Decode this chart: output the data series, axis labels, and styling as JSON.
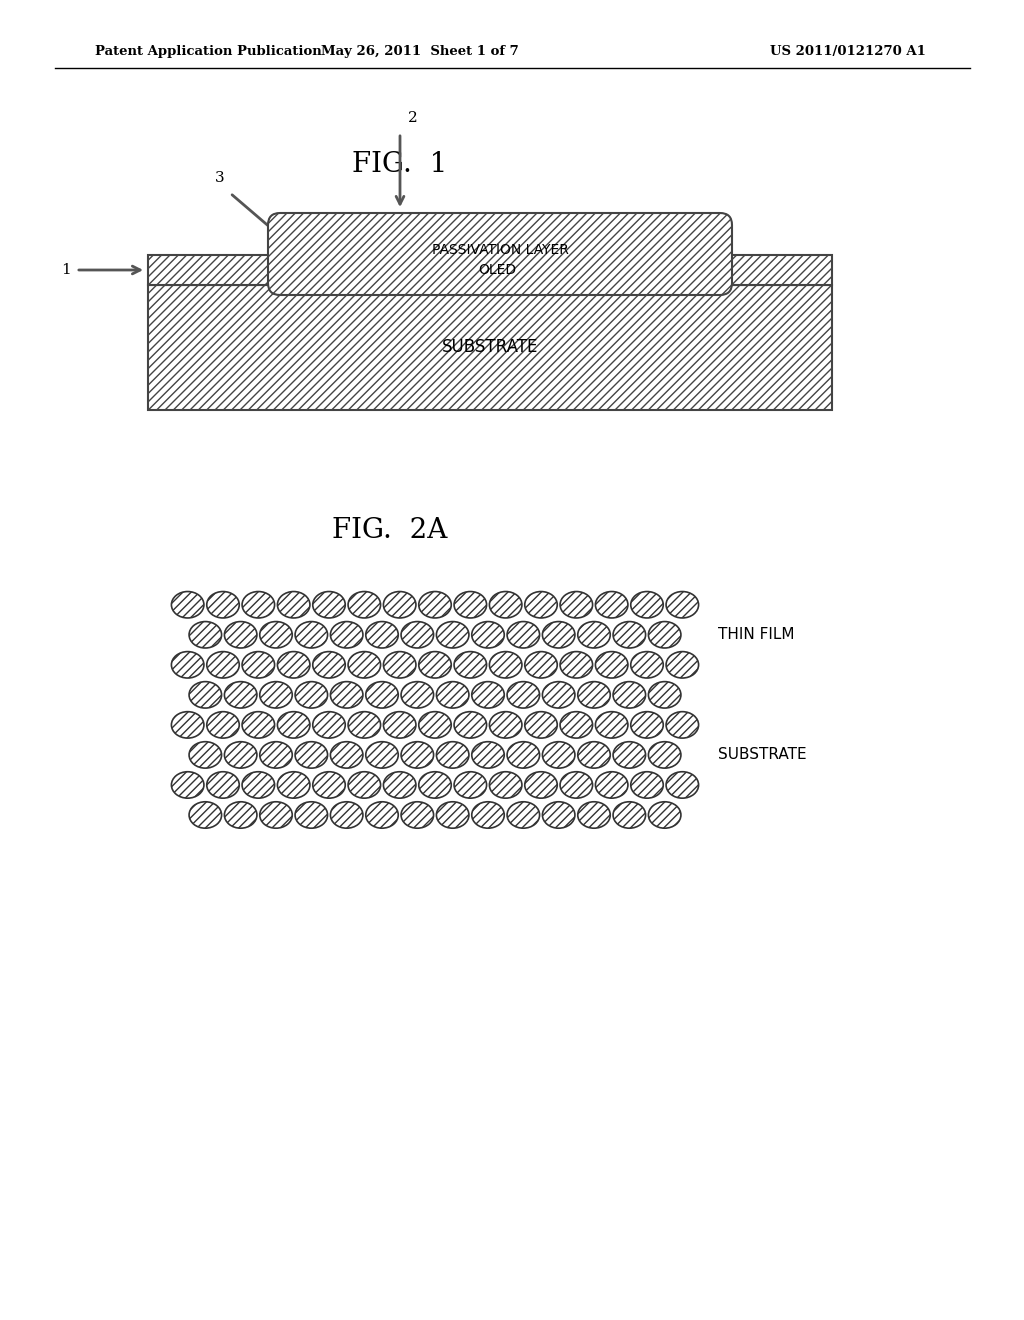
{
  "bg_color": "#ffffff",
  "header_left": "Patent Application Publication",
  "header_mid": "May 26, 2011  Sheet 1 of 7",
  "header_right": "US 2011/0121270 A1",
  "fig1_title": "FIG.  1",
  "fig2a_title": "FIG.  2A",
  "label1": "1",
  "label2": "2",
  "label3": "3",
  "passivation_text": "PASSIVATION LAYER",
  "oled_text": "OLED",
  "substrate_text1": "SUBSTRATE",
  "thin_film_text": "THIN FILM",
  "substrate_text2": "SUBSTRATE",
  "hatch_color": "#aaaaaa",
  "border_color": "#444444",
  "arrow_color": "#555555"
}
